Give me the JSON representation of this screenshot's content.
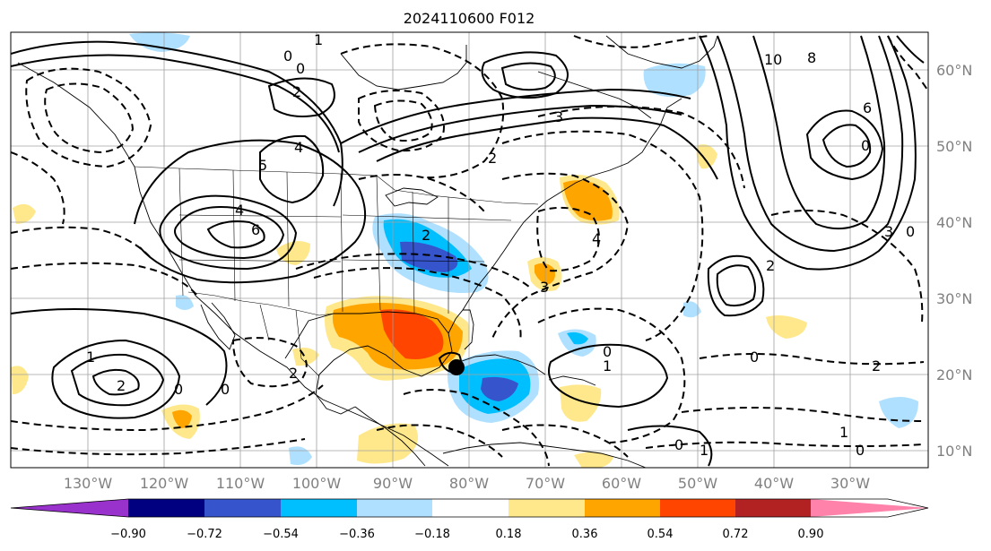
{
  "title": "2024110600 F012",
  "lon_labels": [
    "130°W",
    "120°W",
    "110°W",
    "100°W",
    "90°W",
    "80°W",
    "70°W",
    "60°W",
    "50°W",
    "40°W",
    "30°W"
  ],
  "lat_labels": [
    "60°N",
    "50°N",
    "40°N",
    "30°N",
    "20°N",
    "10°N"
  ],
  "colorbar": {
    "ticks": [
      "−0.90",
      "−0.72",
      "−0.54",
      "−0.36",
      "−0.18",
      "0.18",
      "0.36",
      "0.54",
      "0.72",
      "0.90"
    ],
    "colors": [
      "#9932cc",
      "#000080",
      "#3655cc",
      "#00bfff",
      "#b0e0ff",
      "#ffffff",
      "#ffe88c",
      "#ffa500",
      "#ff4500",
      "#b22222",
      "#ff82ab"
    ]
  },
  "contour_labels": [
    {
      "text": "1"
    },
    {
      "text": "0"
    },
    {
      "text": "0"
    },
    {
      "text": "2"
    },
    {
      "text": "4"
    },
    {
      "text": "5"
    },
    {
      "text": "6"
    },
    {
      "text": "4"
    },
    {
      "text": "3"
    },
    {
      "text": "2"
    },
    {
      "text": "10"
    },
    {
      "text": "8"
    },
    {
      "text": "6"
    },
    {
      "text": "0"
    },
    {
      "text": "3"
    },
    {
      "text": "0"
    },
    {
      "text": "2"
    },
    {
      "text": "4"
    },
    {
      "text": "3"
    },
    {
      "text": "2"
    },
    {
      "text": "2"
    },
    {
      "text": "0"
    },
    {
      "text": "2"
    },
    {
      "text": "1"
    },
    {
      "text": "0"
    },
    {
      "text": "0"
    },
    {
      "text": "1"
    },
    {
      "text": "2"
    },
    {
      "text": "0"
    },
    {
      "text": "1"
    },
    {
      "text": "0"
    },
    {
      "text": "1"
    },
    {
      "text": "0"
    }
  ]
}
